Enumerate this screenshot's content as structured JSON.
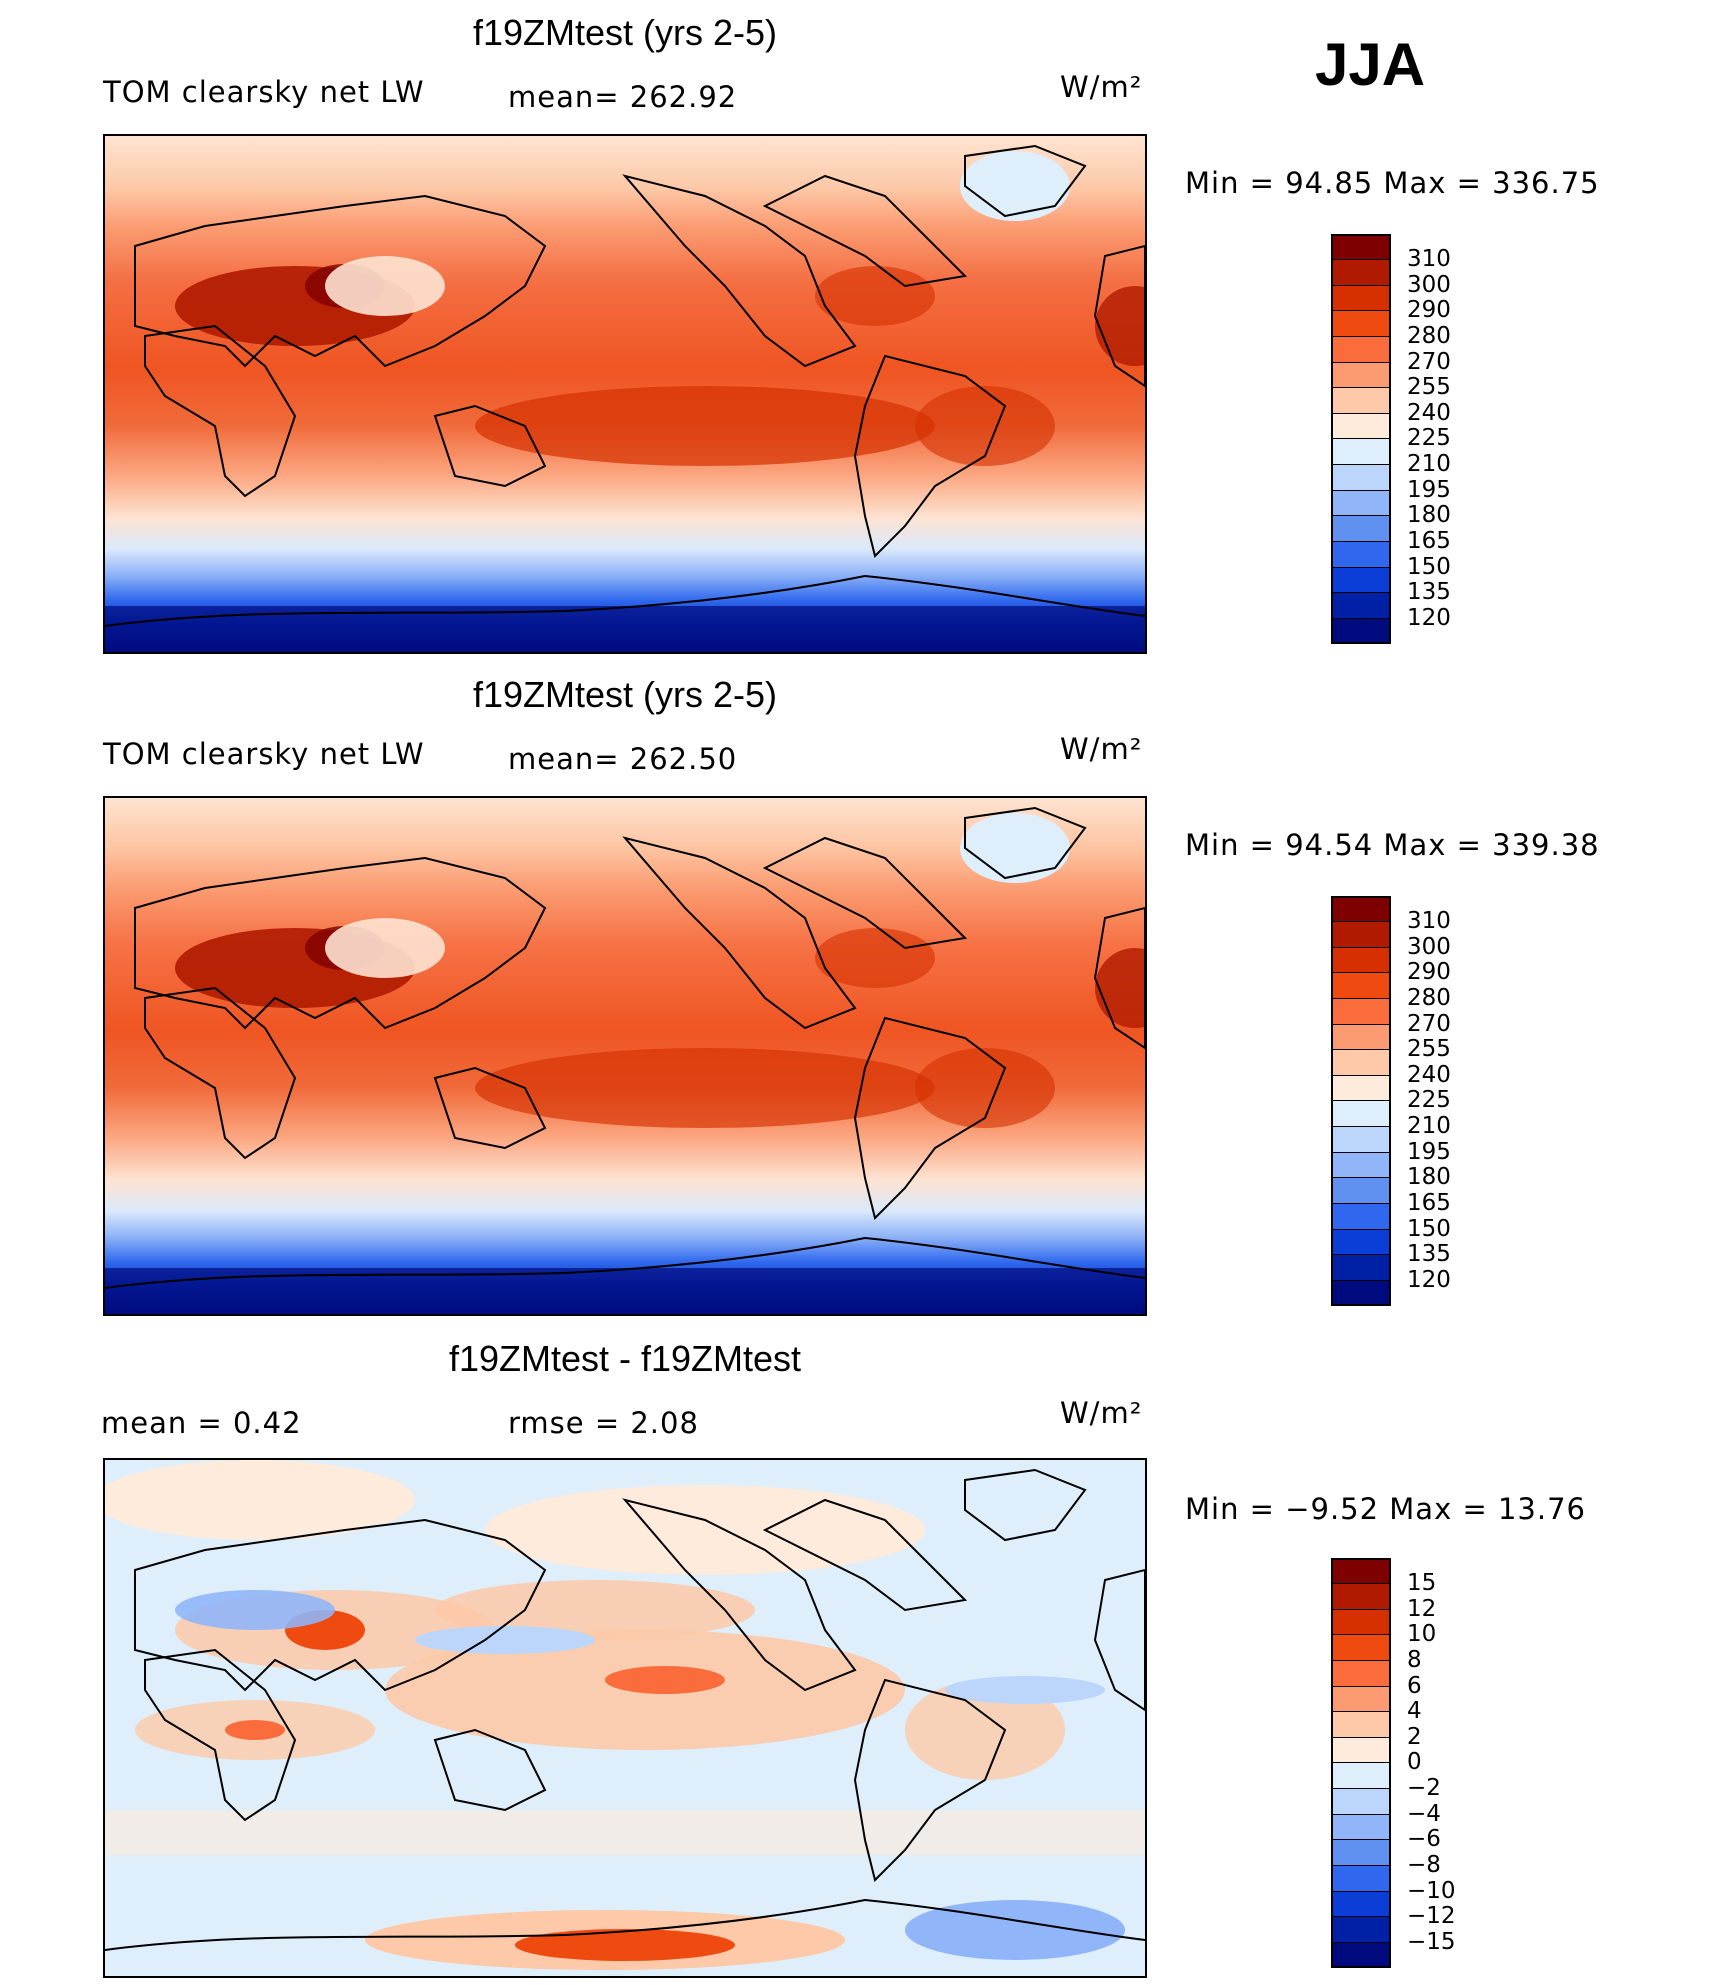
{
  "season": "JJA",
  "units_label": "W/m²",
  "panels": [
    {
      "title": "f19ZMtest (yrs 2-5)",
      "left_label": "TOM clearsky net LW",
      "center_label": "mean= 262.92",
      "right_label": "W/m²",
      "minmax": "Min =   94.85 Max =  336.75",
      "colorbar_ticks": [
        "310",
        "300",
        "290",
        "280",
        "270",
        "255",
        "240",
        "225",
        "210",
        "195",
        "180",
        "165",
        "150",
        "135",
        "120"
      ]
    },
    {
      "title": "f19ZMtest (yrs 2-5)",
      "left_label": "TOM clearsky net LW",
      "center_label": "mean= 262.50",
      "right_label": "W/m²",
      "minmax": "Min =   94.54 Max =  339.38",
      "colorbar_ticks": [
        "310",
        "300",
        "290",
        "280",
        "270",
        "255",
        "240",
        "225",
        "210",
        "195",
        "180",
        "165",
        "150",
        "135",
        "120"
      ]
    },
    {
      "title": "f19ZMtest - f19ZMtest",
      "left_label": "mean =     0.42",
      "center_label": "rmse =     2.08",
      "right_label": "W/m²",
      "minmax": "Min =   −9.52 Max =   13.76",
      "colorbar_ticks": [
        "15",
        "12",
        "10",
        "8",
        "6",
        "4",
        "2",
        "0",
        "−2",
        "−4",
        "−6",
        "−8",
        "−10",
        "−12",
        "−15"
      ]
    }
  ],
  "colors": {
    "cbar_abs": [
      "#7f0000",
      "#b01b00",
      "#d63000",
      "#ef4a10",
      "#fa6c3c",
      "#fc9b72",
      "#fdc9a8",
      "#feebdc",
      "#dfeefb",
      "#bcd6fb",
      "#90b5f8",
      "#6090f0",
      "#2f68ee",
      "#0a3ed6",
      "#0020a5",
      "#000a7f"
    ],
    "cbar_diff": [
      "#7f0000",
      "#b01b00",
      "#d63000",
      "#ef4a10",
      "#fa6c3c",
      "#fc9b72",
      "#fdc9a8",
      "#feebdc",
      "#dfeefb",
      "#bcd6fb",
      "#90b5f8",
      "#6090f0",
      "#2f68ee",
      "#0a3ed6",
      "#0020a5",
      "#000a7f"
    ]
  }
}
